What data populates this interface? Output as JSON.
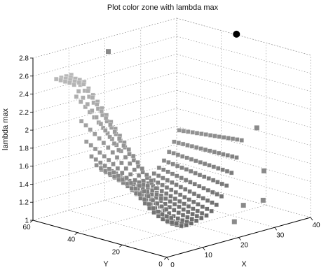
{
  "chart_data": {
    "type": "scatter",
    "title": "Plot color zone with lambda max",
    "xlabel": "X",
    "ylabel": "Y",
    "zlabel": "lambda max",
    "xlim": [
      0,
      40
    ],
    "ylim": [
      0,
      60
    ],
    "zlim": [
      1,
      2.8
    ],
    "x_ticks": [
      "0",
      "10",
      "20",
      "30",
      "40"
    ],
    "y_ticks": [
      "0",
      "20",
      "40",
      "60"
    ],
    "z_ticks": [
      "1",
      "1.2",
      "1.4",
      "1.6",
      "1.8",
      "2",
      "2.2",
      "2.4",
      "2.6",
      "2.8"
    ],
    "grid": true,
    "surface": {
      "description_free": true,
      "x_range": [
        4,
        32
      ],
      "y_range": [
        18,
        56
      ],
      "z_formula_params": {
        "base": 1.1,
        "ridge_peak": 2.55,
        "valley_min": 1.05
      }
    },
    "series": [
      {
        "marker": "square",
        "color": "#8a8a8a",
        "points": [
          [
            16,
            52,
            2.75
          ],
          [
            30,
            8,
            2.05
          ],
          [
            33,
            10,
            1.2
          ],
          [
            30,
            14,
            1.15
          ],
          [
            25,
            10,
            1.05
          ],
          [
            32,
            8,
            1.55
          ]
        ]
      },
      {
        "marker": "circle",
        "color": "#000000",
        "points": [
          [
            38,
            30,
            2.85
          ]
        ]
      }
    ]
  }
}
